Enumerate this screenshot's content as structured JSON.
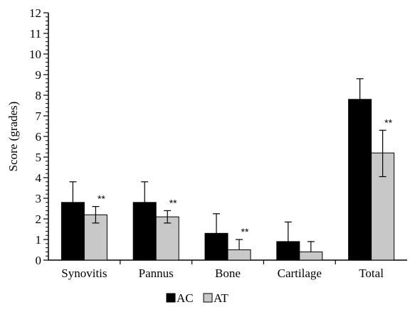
{
  "chart_data": {
    "type": "bar",
    "ylabel": "Score (grades)",
    "xlabel": "",
    "ylim": [
      0,
      12
    ],
    "yticks": [
      0,
      1,
      2,
      3,
      4,
      5,
      6,
      7,
      8,
      9,
      10,
      11,
      12
    ],
    "categories": [
      "Synovitis",
      "Pannus",
      "Bone",
      "Cartilage",
      "Total"
    ],
    "series": [
      {
        "name": "AC",
        "color": "#000000",
        "values": [
          2.8,
          2.8,
          1.3,
          0.9,
          7.8
        ],
        "error_upper": [
          3.8,
          3.8,
          2.25,
          1.85,
          8.8
        ]
      },
      {
        "name": "AT",
        "color": "#c8c8c8",
        "values": [
          2.2,
          2.1,
          0.5,
          0.4,
          5.2
        ],
        "error_upper": [
          2.6,
          2.4,
          1.0,
          0.9,
          6.3
        ],
        "error_lower": [
          1.8,
          1.8,
          null,
          null,
          4.05
        ]
      }
    ],
    "annotations": [
      {
        "category": "Synovitis",
        "series": "AT",
        "text": "**"
      },
      {
        "category": "Pannus",
        "series": "AT",
        "text": "**"
      },
      {
        "category": "Bone",
        "series": "AT",
        "text": "**"
      },
      {
        "category": "Total",
        "series": "AT",
        "text": "**"
      }
    ],
    "legend": {
      "position": "bottom-center",
      "entries": [
        "AC",
        "AT"
      ]
    },
    "grid": false
  }
}
